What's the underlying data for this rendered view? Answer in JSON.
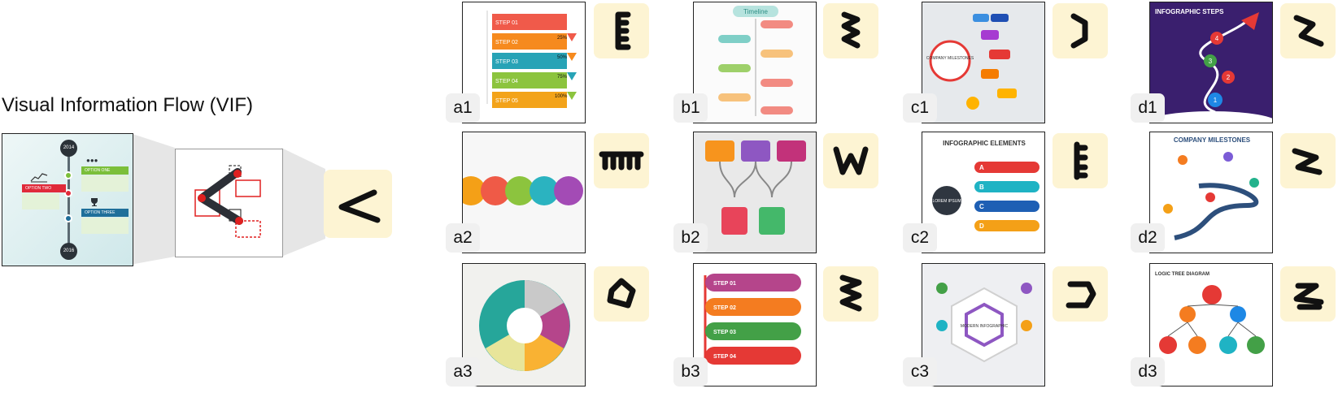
{
  "heading": "Visual Information Flow (VIF)",
  "example": {
    "year_top": "2014",
    "year_bottom": "2016",
    "option_one": "OPTION ONE",
    "option_two": "OPTION TWO",
    "option_three": "OPTION THREE"
  },
  "colors": {
    "glyph_bg": "#fdf4d3",
    "box_red": "#e02020",
    "flow_dark": "#2c2f36"
  },
  "panels": [
    {
      "id": "a1",
      "label": "a1",
      "glyph": "E-shape-comb"
    },
    {
      "id": "b1",
      "label": "b1",
      "glyph": "zigzag"
    },
    {
      "id": "c1",
      "label": "c1",
      "glyph": "right-bracket"
    },
    {
      "id": "d1",
      "label": "d1",
      "glyph": "z-arrow"
    },
    {
      "id": "a2",
      "label": "a2",
      "glyph": "table-comb"
    },
    {
      "id": "b2",
      "label": "b2",
      "glyph": "W-shape"
    },
    {
      "id": "c2",
      "label": "c2",
      "glyph": "E-shape"
    },
    {
      "id": "d2",
      "label": "d2",
      "glyph": "greater-than-zigzag"
    },
    {
      "id": "a3",
      "label": "a3",
      "glyph": "pentagon-loop"
    },
    {
      "id": "b3",
      "label": "b3",
      "glyph": "zigzag-dense"
    },
    {
      "id": "c3",
      "label": "c3",
      "glyph": "hexagon-loop"
    },
    {
      "id": "d3",
      "label": "d3",
      "glyph": "z-stroke"
    }
  ],
  "thumbnail_text": {
    "b1": "Timeline",
    "c1_center": "COMPANY MILESTONES",
    "d1_title": "INFOGRAPHIC STEPS",
    "c2_title": "INFOGRAPHIC ELEMENTS",
    "c2_items": [
      "A",
      "B",
      "C",
      "D"
    ],
    "c2_lorem": "LOREM IPSUM",
    "d2_title": "COMPANY MILESTONES",
    "d3_title": "LOGIC TREE DIAGRAM",
    "b3_steps": [
      "STEP 01",
      "STEP 02",
      "STEP 03",
      "STEP 04"
    ],
    "a1_steps": [
      "STEP 01",
      "STEP 02",
      "STEP 03",
      "STEP 04",
      "STEP 05"
    ],
    "a1_pcts": [
      "25%",
      "50%",
      "75%",
      "100%"
    ],
    "c3_center": "MODERN INFOGRAPHIC",
    "d1_steps": [
      "1",
      "2",
      "3",
      "4"
    ]
  }
}
